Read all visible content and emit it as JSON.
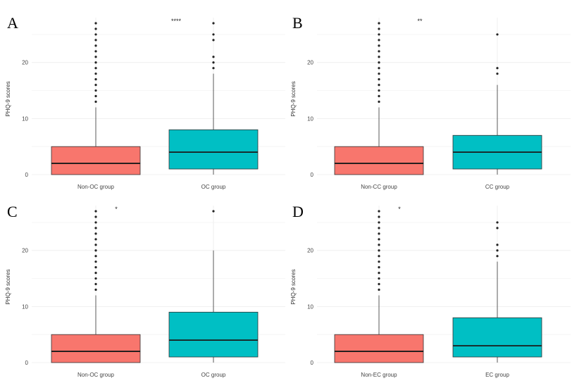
{
  "chart_data": [
    {
      "type": "boxplot",
      "panel": "A",
      "ylabel": "PHQ-9 scores",
      "ylim": [
        0,
        27
      ],
      "yticks": [
        0,
        10,
        20
      ],
      "significance": "****",
      "groups": [
        {
          "label": "Non-OC group",
          "color": "#F8766D",
          "min": 0,
          "q1": 0,
          "median": 2,
          "q3": 5,
          "max": 12,
          "outliers": [
            13,
            14,
            15,
            16,
            17,
            18,
            19,
            20,
            21,
            22,
            23,
            24,
            25,
            26,
            27
          ]
        },
        {
          "label": "OC group",
          "color": "#00BFC4",
          "min": 0,
          "q1": 1,
          "median": 4,
          "q3": 8,
          "max": 18,
          "outliers": [
            19,
            20,
            21,
            24,
            25,
            27
          ]
        }
      ]
    },
    {
      "type": "boxplot",
      "panel": "B",
      "ylabel": "PHQ-9 scores",
      "ylim": [
        0,
        27
      ],
      "yticks": [
        0,
        10,
        20
      ],
      "significance": "**",
      "groups": [
        {
          "label": "Non-CC group",
          "color": "#F8766D",
          "min": 0,
          "q1": 0,
          "median": 2,
          "q3": 5,
          "max": 12,
          "outliers": [
            13,
            14,
            15,
            16,
            17,
            18,
            19,
            20,
            21,
            22,
            23,
            24,
            25,
            26,
            27
          ]
        },
        {
          "label": "CC group",
          "color": "#00BFC4",
          "min": 0,
          "q1": 1,
          "median": 4,
          "q3": 7,
          "max": 16,
          "outliers": [
            18,
            19,
            25
          ]
        }
      ]
    },
    {
      "type": "boxplot",
      "panel": "C",
      "ylabel": "PHQ-9 scores",
      "ylim": [
        0,
        27
      ],
      "yticks": [
        0,
        10,
        20
      ],
      "significance": "*",
      "groups": [
        {
          "label": "Non-OC group",
          "color": "#F8766D",
          "min": 0,
          "q1": 0,
          "median": 2,
          "q3": 5,
          "max": 12,
          "outliers": [
            13,
            14,
            15,
            16,
            17,
            18,
            19,
            20,
            21,
            22,
            23,
            24,
            25,
            26,
            27
          ]
        },
        {
          "label": "OC group",
          "color": "#00BFC4",
          "min": 0,
          "q1": 1,
          "median": 4,
          "q3": 9,
          "max": 20,
          "outliers": [
            27
          ]
        }
      ]
    },
    {
      "type": "boxplot",
      "panel": "D",
      "ylabel": "PHQ-9 scores",
      "ylim": [
        0,
        27
      ],
      "yticks": [
        0,
        10,
        20
      ],
      "significance": "*",
      "groups": [
        {
          "label": "Non-EC group",
          "color": "#F8766D",
          "min": 0,
          "q1": 0,
          "median": 2,
          "q3": 5,
          "max": 12,
          "outliers": [
            13,
            14,
            15,
            16,
            17,
            18,
            19,
            20,
            21,
            22,
            23,
            24,
            25,
            26,
            27
          ]
        },
        {
          "label": "EC group",
          "color": "#00BFC4",
          "min": 0,
          "q1": 1,
          "median": 3,
          "q3": 8,
          "max": 18,
          "outliers": [
            19,
            20,
            21,
            24,
            25
          ]
        }
      ]
    }
  ]
}
